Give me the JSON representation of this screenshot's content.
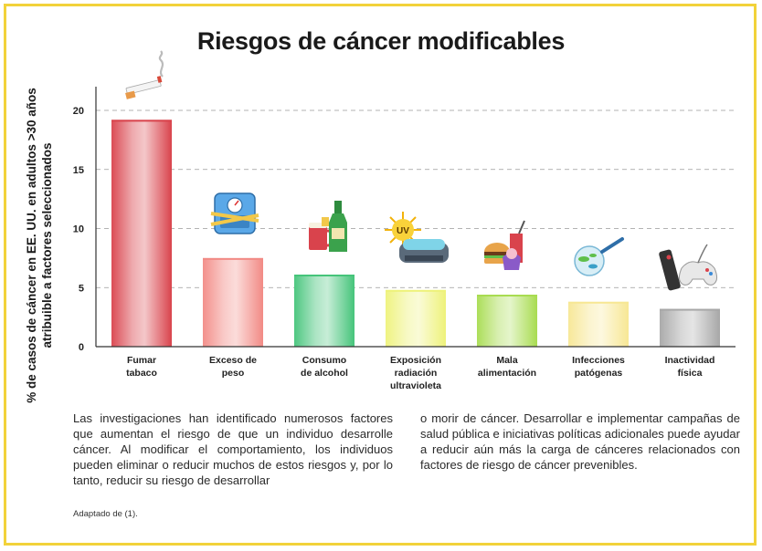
{
  "title": "Riesgos de cáncer modificables",
  "ylabel_line1": "% de casos de cáncer en EE. UU. en adultos >30 años",
  "ylabel_line2": "atribuible a factores seleccionados",
  "paragraph_left": "Las investigaciones han identificado numerosos factores que aumentan el riesgo de que un individuo desarrolle cáncer. Al modificar el comportamiento, los individuos pueden eliminar o reducir muchos de estos riesgos y, por lo tanto, reducir su riesgo de desarrollar",
  "paragraph_right": "o morir de cáncer. Desarrollar e implementar campañas de salud pública e iniciativas políticas adicionales puede ayudar a reducir aún más la carga de cánceres relacionados con factores de riesgo de cáncer prevenibles.",
  "source": "Adaptado de (1).",
  "chart_data": {
    "type": "bar",
    "title": "Riesgos de cáncer modificables",
    "ylabel": "% de casos de cáncer en EE. UU. en adultos >30 años atribuible a factores seleccionados",
    "categories": [
      [
        "Fumar",
        "tabaco"
      ],
      [
        "Exceso de",
        "peso"
      ],
      [
        "Consumo",
        "de alcohol"
      ],
      [
        "Exposición",
        "radiación",
        "ultravioleta"
      ],
      [
        "Mala",
        "alimentación"
      ],
      [
        "Infecciones",
        "patógenas"
      ],
      [
        "Inactividad",
        "física"
      ]
    ],
    "values": [
      19.2,
      7.5,
      6.1,
      4.8,
      4.4,
      3.8,
      3.2
    ],
    "colors": [
      "#d9434c",
      "#f28a85",
      "#45c47a",
      "#eef27a",
      "#a8dc50",
      "#f7e794",
      "#a7a7a7"
    ],
    "yticks": [
      0,
      5,
      10,
      15,
      20
    ],
    "ylim": [
      0,
      20
    ],
    "grid": true
  },
  "icons": [
    "cigarette-icon",
    "scale-icon",
    "alcohol-icon",
    "uv-tanning-icon",
    "junk-food-icon",
    "microbe-icon",
    "tv-remote-gamepad-icon"
  ]
}
